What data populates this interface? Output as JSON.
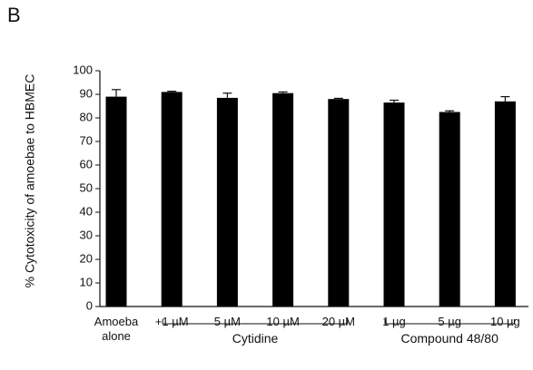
{
  "chart_data": {
    "type": "bar",
    "panel_label": "B",
    "y_label": "% Cytotoxicity of amoebae to HBMEC",
    "categories": [
      "Amoeba alone",
      "+1 µM",
      "5 µM",
      "10 µM",
      "20 µM",
      "1 µg",
      "5 µg",
      "10 µg"
    ],
    "values": [
      89,
      91,
      88.5,
      90.5,
      88,
      86.5,
      82.5,
      87
    ],
    "errors": [
      3,
      0.3,
      2,
      0.5,
      0.3,
      1,
      0.5,
      2
    ],
    "color": "#000000",
    "groups": [
      {
        "label": "Cytidine",
        "start": 1,
        "end": 4
      },
      {
        "label": "Compound 48/80",
        "start": 5,
        "end": 7
      }
    ],
    "ylim": [
      0,
      100
    ],
    "yticks": [
      0,
      10,
      20,
      30,
      40,
      50,
      60,
      70,
      80,
      90,
      100
    ],
    "grid": false
  }
}
